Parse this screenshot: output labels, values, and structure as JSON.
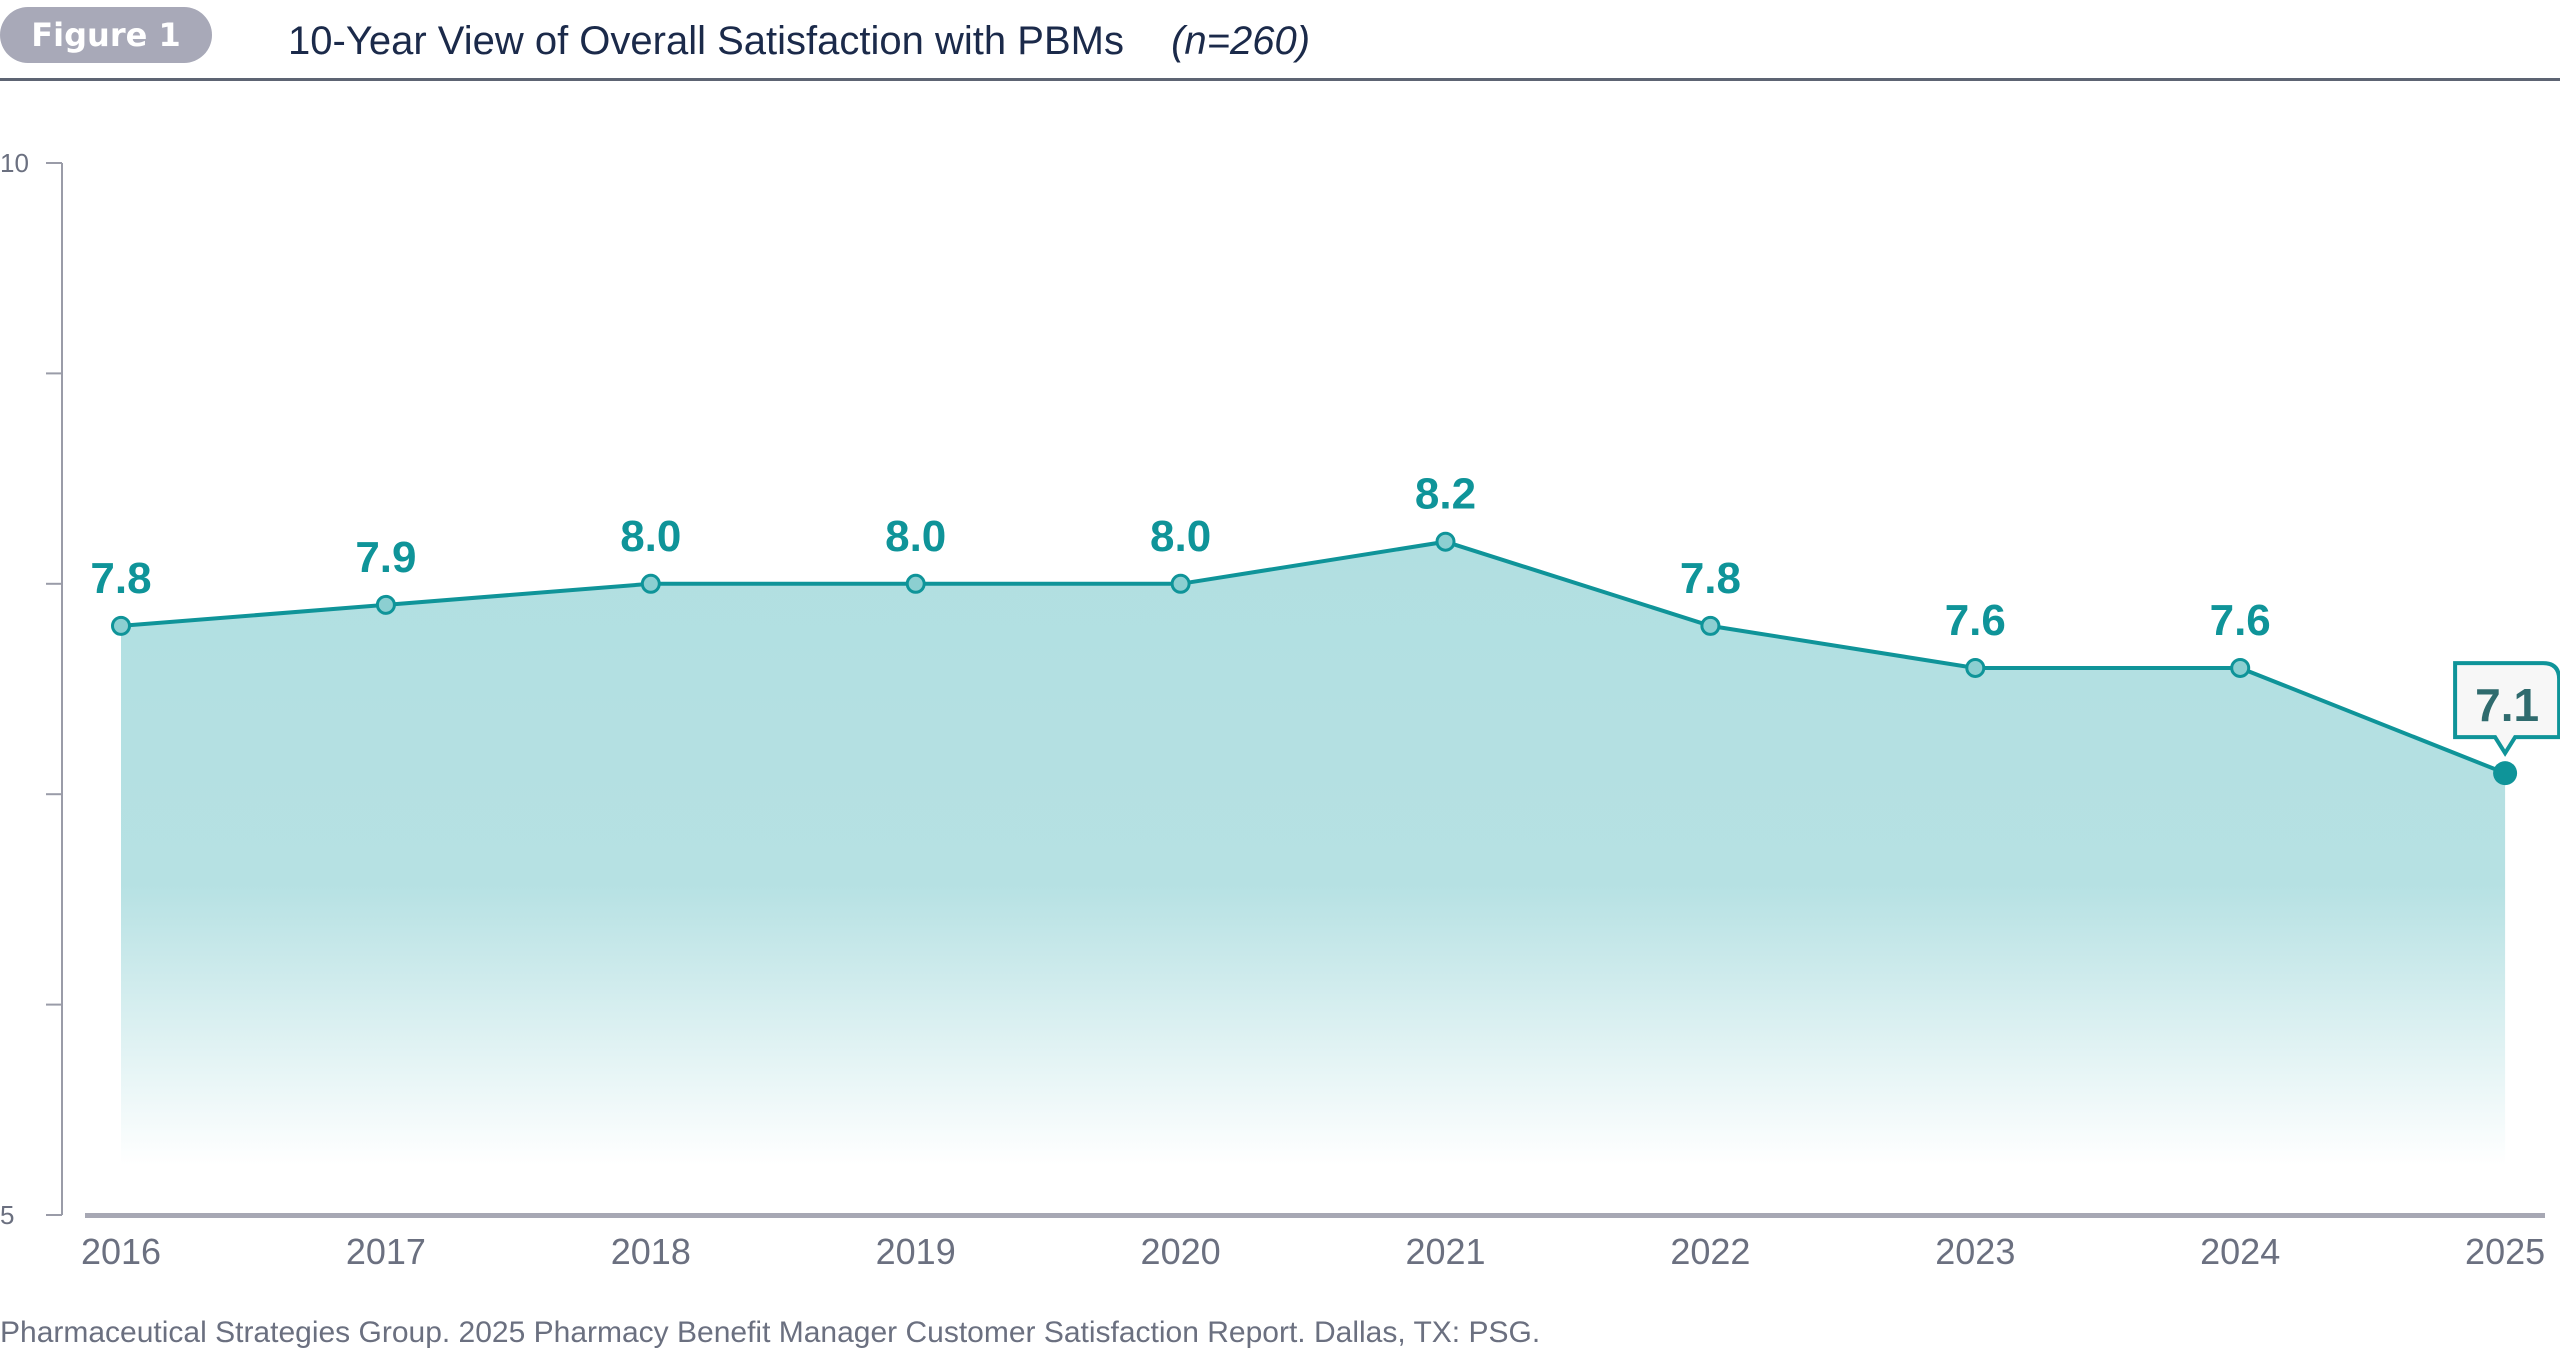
{
  "header": {
    "figure_label": "Figure 1",
    "title": "10-Year View of Overall Satisfaction with PBMs",
    "sample_size": "(n=260)"
  },
  "colors": {
    "accent": "#0f9499",
    "fill_top": "#b1dfe1",
    "pill": "#a8a9b8",
    "title": "#1b2a4a",
    "axis_text": "#6b7080",
    "highlight_text": "#2f6b6e"
  },
  "chart_data": {
    "type": "area",
    "title": "10-Year View of Overall Satisfaction with PBMs",
    "xlabel": "",
    "ylabel": "",
    "categories": [
      "2016",
      "2017",
      "2018",
      "2019",
      "2020",
      "2021",
      "2022",
      "2023",
      "2024",
      "2025"
    ],
    "values": [
      7.8,
      7.9,
      8.0,
      8.0,
      8.0,
      8.2,
      7.8,
      7.6,
      7.6,
      7.1
    ],
    "data_labels": [
      "7.8",
      "7.9",
      "8.0",
      "8.0",
      "8.0",
      "8.2",
      "7.8",
      "7.6",
      "7.6",
      "7.1"
    ],
    "ylim": [
      5,
      10
    ],
    "yticks": [
      5,
      6,
      7,
      8,
      9,
      10
    ],
    "ytick_labels": [
      "5",
      "",
      "",
      "",
      "",
      "10"
    ],
    "grid": false,
    "highlighted_point": "2025"
  },
  "footer": {
    "source": "Pharmaceutical Strategies Group. 2025 Pharmacy Benefit Manager Customer Satisfaction Report. Dallas, TX: PSG."
  }
}
